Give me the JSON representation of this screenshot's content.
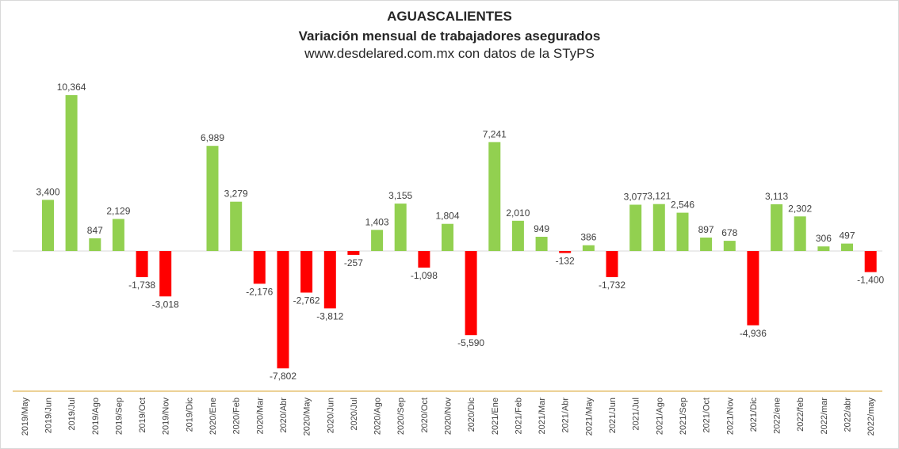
{
  "chart_data": {
    "type": "bar",
    "title": "AGUASCALIENTES",
    "subtitle": "Variación mensual de trabajadores asegurados",
    "source": "www.desdelared.com.mx con datos de la STyPS",
    "categories": [
      "2019/May",
      "2019/Jun",
      "2019/Jul",
      "2019/Ago",
      "2019/Sep",
      "2019/Oct",
      "2019/Nov",
      "2019/Dic",
      "2020/Ene",
      "2020/Feb",
      "2020/Mar",
      "2020/Abr",
      "2020/May",
      "2020/Jun",
      "2020/Jul",
      "2020/Ago",
      "2020/Sep",
      "2020/Oct",
      "2020/Nov",
      "2020/Dic",
      "2021/Ene",
      "2021/Feb",
      "2021/Mar",
      "2021/Abr",
      "2021/May",
      "2021/Jun",
      "2021/Jul",
      "2021/Ago",
      "2021/Sep",
      "2021/Oct",
      "2021/Nov",
      "2021/Dic",
      "2022/ene",
      "2022/feb",
      "2022/mar",
      "2022/abr",
      "2022/may"
    ],
    "values": [
      null,
      3400,
      10364,
      847,
      2129,
      -1738,
      -3018,
      null,
      6989,
      3279,
      -2176,
      -7802,
      -2762,
      -3812,
      -257,
      1403,
      3155,
      -1098,
      1804,
      -5590,
      7241,
      2010,
      949,
      -132,
      386,
      -1732,
      3077,
      3121,
      2546,
      897,
      678,
      -4936,
      3113,
      2302,
      306,
      497,
      -1400
    ],
    "value_labels": [
      "",
      "3,400",
      "10,364",
      "847",
      "2,129",
      "-1,738",
      "-3,018",
      "",
      "6,989",
      "3,279",
      "-2,176",
      "-7,802",
      "-2,762",
      "-3,812",
      "-257",
      "1,403",
      "3,155",
      "-1,098",
      "1,804",
      "-5,590",
      "7,241",
      "2,010",
      "949",
      "-132",
      "386",
      "-1,732",
      "3,077",
      "3,121",
      "2,546",
      "897",
      "678",
      "-4,936",
      "3,113",
      "2,302",
      "306",
      "497",
      "-1,400"
    ],
    "ylim": [
      -9500,
      11500
    ],
    "grid": false,
    "colors": {
      "positive": "#92d050",
      "negative": "#ff0000",
      "axis_line": "#d8a32d",
      "zero_line": "#d9d9d9"
    }
  }
}
